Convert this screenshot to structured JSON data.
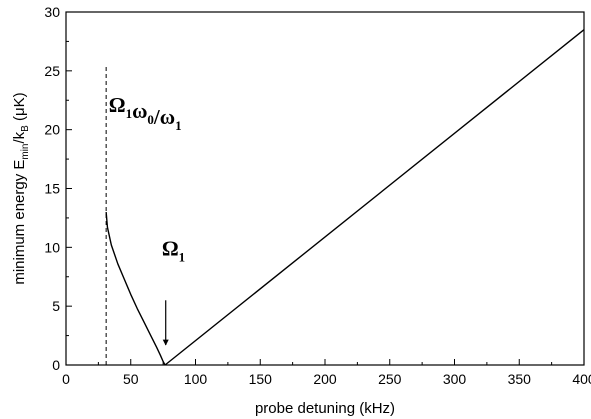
{
  "chart_data": {
    "type": "line",
    "title": "",
    "xlabel": "probe detuning (kHz)",
    "ylabel": {
      "prefix": "minimum energy E",
      "sub1": "min",
      "mid": "/k",
      "sub2": "B",
      "suffix": " (μK)"
    },
    "xlim": [
      0,
      400
    ],
    "ylim": [
      0,
      30
    ],
    "xticks": [
      0,
      50,
      100,
      150,
      200,
      250,
      300,
      350,
      400
    ],
    "yticks": [
      0,
      5,
      10,
      15,
      20,
      25,
      30
    ],
    "grid": false,
    "legend": "none",
    "series": [
      {
        "style": "solid",
        "x": [
          31,
          32,
          35,
          40,
          45,
          50,
          55,
          60,
          65,
          70,
          73,
          75,
          76.5
        ],
        "y": [
          13.0,
          11.7,
          10.2,
          8.6,
          7.3,
          6.0,
          4.8,
          3.7,
          2.6,
          1.5,
          0.8,
          0.3,
          0
        ]
      },
      {
        "style": "solid",
        "x": [
          76.5,
          400
        ],
        "y": [
          0,
          28.5
        ]
      },
      {
        "style": "dashed",
        "x": [
          31,
          31
        ],
        "y": [
          0,
          25.5
        ]
      }
    ],
    "annotations": [
      {
        "id": "dashed-line",
        "parts": [
          {
            "t": "Ω",
            "sub": "1"
          },
          {
            "t": "ω",
            "sub": "0"
          },
          {
            "t": "/ω",
            "sub": "1"
          }
        ],
        "x": 33,
        "y": 21.5
      },
      {
        "id": "minimum",
        "parts": [
          {
            "t": "Ω",
            "sub": "1"
          }
        ],
        "x": 74,
        "y": 9.3,
        "arrow_from": [
          77,
          5.5
        ],
        "arrow_to": [
          77,
          1.7
        ]
      }
    ]
  }
}
